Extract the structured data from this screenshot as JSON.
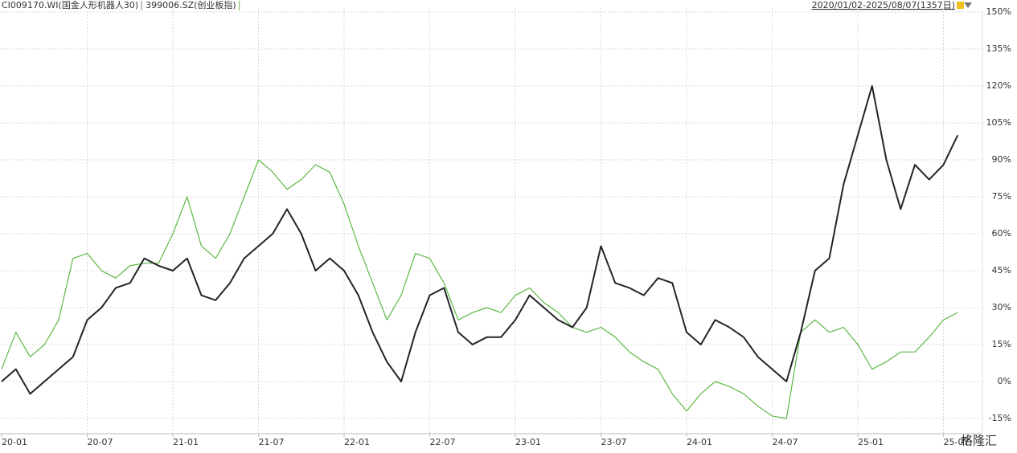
{
  "chart_data": {
    "type": "line",
    "date_range": "2020/01/02-2025/08/07(1357日)",
    "watermark": "格隆汇",
    "categories": [
      "20-01",
      null,
      null,
      null,
      null,
      null,
      "20-07",
      null,
      null,
      null,
      null,
      null,
      "21-01",
      null,
      null,
      null,
      null,
      null,
      "21-07",
      null,
      null,
      null,
      null,
      null,
      "22-01",
      null,
      null,
      null,
      null,
      null,
      "22-07",
      null,
      null,
      null,
      null,
      null,
      "23-01",
      null,
      null,
      null,
      null,
      null,
      "23-07",
      null,
      null,
      null,
      null,
      null,
      "24-01",
      null,
      null,
      null,
      null,
      null,
      "24-07",
      null,
      null,
      null,
      null,
      null,
      "25-01",
      null,
      null,
      null,
      null,
      null,
      "25-07",
      null
    ],
    "series": [
      {
        "name": "CI009170.WI(国金人形机器人30)",
        "color": "#222428",
        "values": [
          0,
          5,
          -5,
          0,
          5,
          10,
          25,
          30,
          38,
          40,
          50,
          47,
          45,
          50,
          35,
          33,
          40,
          50,
          55,
          60,
          70,
          60,
          45,
          50,
          45,
          35,
          20,
          8,
          0,
          20,
          35,
          38,
          20,
          15,
          18,
          18,
          25,
          35,
          30,
          25,
          22,
          30,
          55,
          40,
          38,
          35,
          42,
          40,
          20,
          15,
          25,
          22,
          18,
          10,
          5,
          0,
          20,
          45,
          50,
          80,
          100,
          120,
          90,
          70,
          88,
          82,
          88,
          100
        ]
      },
      {
        "name": "399006.SZ(创业板指)",
        "color": "#5cb843",
        "values": [
          5,
          20,
          10,
          15,
          25,
          50,
          52,
          45,
          42,
          47,
          48,
          48,
          60,
          75,
          55,
          50,
          60,
          75,
          90,
          85,
          78,
          82,
          88,
          85,
          72,
          55,
          40,
          25,
          35,
          52,
          50,
          40,
          25,
          28,
          30,
          28,
          35,
          38,
          32,
          28,
          22,
          20,
          22,
          18,
          12,
          8,
          5,
          -5,
          -12,
          -5,
          0,
          -2,
          -5,
          -10,
          -14,
          -15,
          20,
          25,
          20,
          22,
          15,
          5,
          8,
          12,
          12,
          18,
          25,
          28
        ]
      }
    ],
    "ylim": [
      -15,
      150
    ],
    "yticks": [
      {
        "value": -15,
        "label": "-15%"
      },
      {
        "value": 0,
        "label": "0%"
      },
      {
        "value": 15,
        "label": "15%"
      },
      {
        "value": 30,
        "label": "30%"
      },
      {
        "value": 45,
        "label": "45%"
      },
      {
        "value": 60,
        "label": "60%"
      },
      {
        "value": 75,
        "label": "75%"
      },
      {
        "value": 90,
        "label": "90%"
      },
      {
        "value": 105,
        "label": "105%"
      },
      {
        "value": 120,
        "label": "120%"
      },
      {
        "value": 135,
        "label": "135%"
      },
      {
        "value": 150,
        "label": "150%"
      }
    ],
    "grid": true
  }
}
